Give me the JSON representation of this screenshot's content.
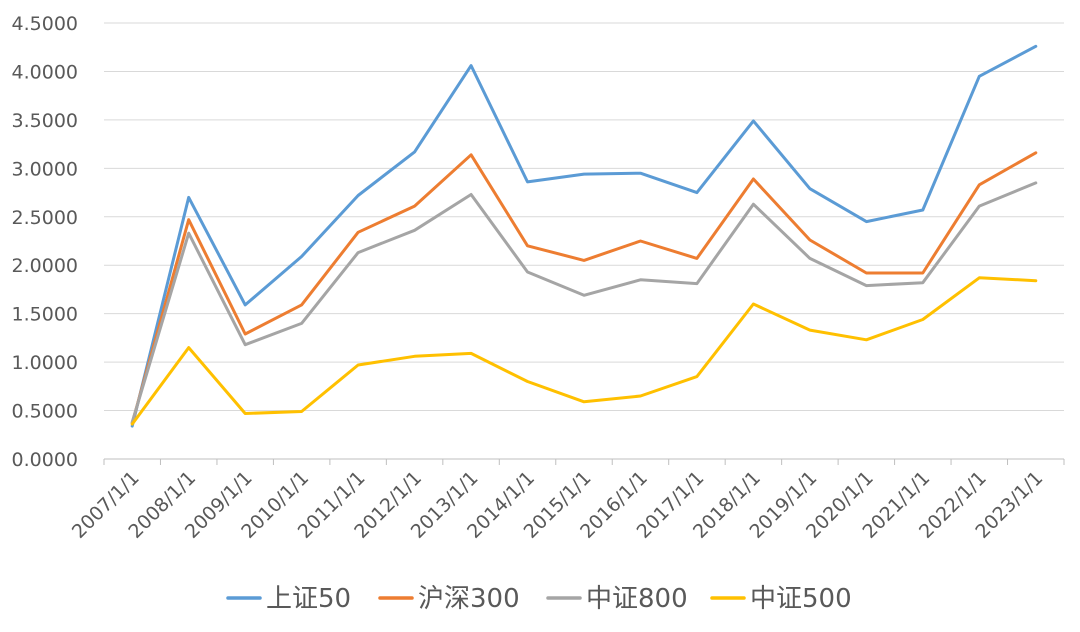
{
  "chart_data": {
    "type": "line",
    "title": "",
    "xlabel": "",
    "ylabel": "",
    "ylim": [
      0,
      4.5
    ],
    "y_tick_labels": [
      "0.0000",
      "0.5000",
      "1.0000",
      "1.5000",
      "2.0000",
      "2.5000",
      "3.0000",
      "3.5000",
      "4.0000",
      "4.5000"
    ],
    "grid": "horizontal",
    "legend_position": "bottom",
    "categories": [
      "2007/1/1",
      "2008/1/1",
      "2009/1/1",
      "2010/1/1",
      "2011/1/1",
      "2012/1/1",
      "2013/1/1",
      "2014/1/1",
      "2015/1/1",
      "2016/1/1",
      "2017/1/1",
      "2018/1/1",
      "2019/1/1",
      "2020/1/1",
      "2021/1/1",
      "2022/1/1",
      "2023/1/1"
    ],
    "series": [
      {
        "name": "上证50",
        "color": "#5B9BD5",
        "values": [
          0.34,
          2.7,
          1.59,
          2.09,
          2.72,
          3.17,
          4.06,
          2.86,
          2.94,
          2.95,
          2.75,
          3.49,
          2.79,
          2.45,
          2.57,
          3.95,
          4.26
        ]
      },
      {
        "name": "沪深300",
        "color": "#ED7D31",
        "values": [
          0.37,
          2.47,
          1.29,
          1.59,
          2.34,
          2.61,
          3.14,
          2.2,
          2.05,
          2.25,
          2.07,
          2.89,
          2.26,
          1.92,
          1.92,
          2.83,
          3.16
        ]
      },
      {
        "name": "中证800",
        "color": "#A5A5A5",
        "values": [
          0.38,
          2.33,
          1.18,
          1.4,
          2.13,
          2.36,
          2.73,
          1.93,
          1.69,
          1.85,
          1.81,
          2.63,
          2.07,
          1.79,
          1.82,
          2.61,
          2.85
        ]
      },
      {
        "name": "中证500",
        "color": "#FFC000",
        "values": [
          0.36,
          1.15,
          0.47,
          0.49,
          0.97,
          1.06,
          1.09,
          0.8,
          0.59,
          0.65,
          0.85,
          1.6,
          1.33,
          1.23,
          1.44,
          1.87,
          1.84
        ]
      }
    ]
  }
}
